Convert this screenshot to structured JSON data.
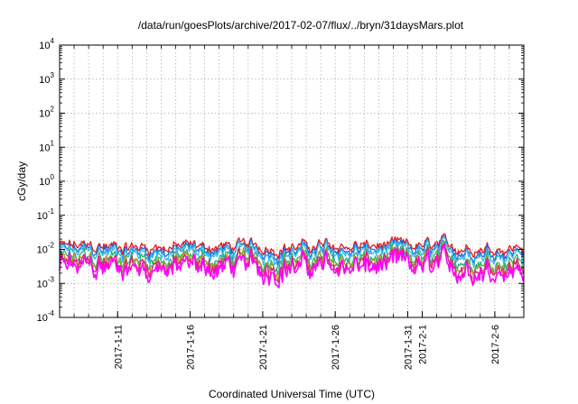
{
  "chart_data": {
    "type": "line",
    "title": "/data/run/goesPlots/archive/2017-02-07/flux/../bryn/31daysMars.plot",
    "xlabel": "Coordinated Universal Time (UTC)",
    "ylabel": "cGy/day",
    "yscale": "log",
    "ylim": [
      0.0001,
      10000
    ],
    "xlim": [
      "2017-01-07",
      "2017-02-08"
    ],
    "grid": true,
    "y_ticks": [
      {
        "base": "10",
        "exp": "-4"
      },
      {
        "base": "10",
        "exp": "-3"
      },
      {
        "base": "10",
        "exp": "-2"
      },
      {
        "base": "10",
        "exp": "-1"
      },
      {
        "base": "10",
        "exp": "0"
      },
      {
        "base": "10",
        "exp": "1"
      },
      {
        "base": "10",
        "exp": "2"
      },
      {
        "base": "10",
        "exp": "3"
      },
      {
        "base": "10",
        "exp": "4"
      }
    ],
    "x_ticks": [
      {
        "date": "2017-01-11",
        "label": "2017-1-11"
      },
      {
        "date": "2017-01-16",
        "label": "2017-1-16"
      },
      {
        "date": "2017-01-21",
        "label": "2017-1-21"
      },
      {
        "date": "2017-01-26",
        "label": "2017-1-26"
      },
      {
        "date": "2017-01-31",
        "label": "2017-1-31"
      },
      {
        "date": "2017-02-01",
        "label": "2017-2-1"
      },
      {
        "date": "2017-02-06",
        "label": "2017-2-6"
      }
    ],
    "series": [
      {
        "color": "#e41a1c",
        "base": 0.012
      },
      {
        "color": "#2166d6",
        "base": 0.0095
      },
      {
        "color": "#31b8e8",
        "base": 0.008
      },
      {
        "color": "#2ab07f",
        "base": 0.0052
      },
      {
        "color": "#a0a020",
        "base": 0.0042
      },
      {
        "color": "#e0207a",
        "base": 0.0036
      },
      {
        "color": "#ff00ff",
        "base": 0.0028
      }
    ]
  }
}
